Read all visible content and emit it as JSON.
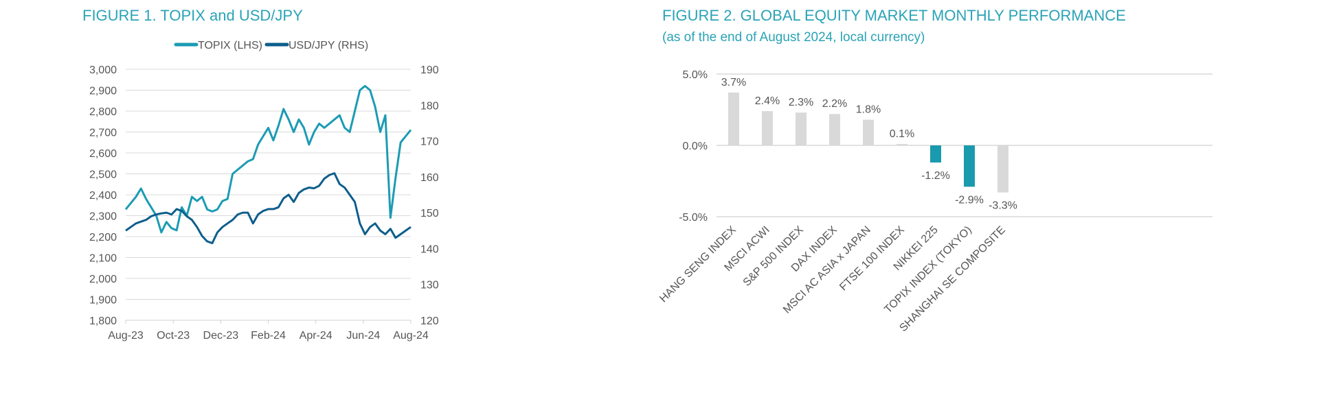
{
  "chart_data": [
    {
      "type": "line",
      "title": "FIGURE 1. TOPIX and USD/JPY",
      "x_tick_labels": [
        "Aug-23",
        "Oct-23",
        "Dec-23",
        "Feb-24",
        "Apr-24",
        "Jun-24",
        "Aug-24"
      ],
      "x_unit": "weeks since Aug-23",
      "y_left": {
        "label": "",
        "ylim": [
          1800,
          3000
        ],
        "ticks": [
          "3,000",
          "2,900",
          "2,800",
          "2,700",
          "2,600",
          "2,500",
          "2,400",
          "2,300",
          "2,200",
          "2,100",
          "2,000",
          "1,900",
          "1,800"
        ]
      },
      "y_right": {
        "label": "",
        "ylim": [
          120,
          190
        ],
        "ticks": [
          "190",
          "180",
          "170",
          "160",
          "150",
          "140",
          "130",
          "120"
        ]
      },
      "grid": true,
      "legend": "top-center",
      "series": [
        {
          "name": "TOPIX (LHS)",
          "axis": "left",
          "color": "#1b9bb3",
          "values": [
            2330,
            2360,
            2390,
            2430,
            2380,
            2340,
            2300,
            2220,
            2270,
            2240,
            2230,
            2340,
            2300,
            2390,
            2370,
            2390,
            2330,
            2320,
            2330,
            2370,
            2380,
            2500,
            2520,
            2540,
            2560,
            2570,
            2640,
            2680,
            2720,
            2660,
            2730,
            2810,
            2760,
            2700,
            2760,
            2720,
            2640,
            2700,
            2740,
            2720,
            2740,
            2760,
            2780,
            2720,
            2700,
            2800,
            2900,
            2920,
            2900,
            2820,
            2700,
            2780,
            2290,
            2480,
            2650,
            2680,
            2710
          ]
        },
        {
          "name": "USD/JPY (RHS)",
          "axis": "right",
          "color": "#0d5e8c",
          "values": [
            145,
            146,
            147,
            147.5,
            148,
            149,
            149.5,
            149.8,
            150,
            149.5,
            151,
            150.5,
            149,
            148,
            146,
            143.5,
            142,
            141.5,
            144.5,
            146,
            147,
            148,
            149.5,
            150,
            150,
            147,
            149.5,
            150.5,
            151,
            151,
            151.5,
            154,
            155,
            153,
            155.5,
            156.5,
            157,
            156.8,
            157.5,
            159.5,
            160.5,
            161,
            158,
            157,
            155,
            153,
            147,
            144,
            146,
            147,
            145,
            144,
            145.5,
            143,
            144,
            145,
            146
          ]
        }
      ]
    },
    {
      "type": "bar",
      "title": "FIGURE 2. GLOBAL EQUITY MARKET MONTHLY PERFORMANCE",
      "subtitle": "(as of the end of August 2024, local currency)",
      "categories": [
        "HANG SENG INDEX",
        "MSCI ACWI",
        "S&P 500 INDEX",
        "DAX INDEX",
        "MSCI AC ASIA x JAPAN",
        "FTSE 100 INDEX",
        "NIKKEI 225",
        "TOPIX INDEX (TOKYO)",
        "SHANGHAI SE COMPOSITE"
      ],
      "values": [
        3.7,
        2.4,
        2.3,
        2.2,
        1.8,
        0.1,
        -1.2,
        -2.9,
        -3.3
      ],
      "data_labels": [
        "3.7%",
        "2.4%",
        "2.3%",
        "2.2%",
        "1.8%",
        "0.1%",
        "-1.2%",
        "-2.9%",
        "-3.3%"
      ],
      "highlight": [
        false,
        false,
        false,
        false,
        false,
        false,
        true,
        true,
        false
      ],
      "colors": {
        "default": "#d9d9d9",
        "highlight": "#1a9aae"
      },
      "ylim": [
        -5,
        5
      ],
      "y_ticks": [
        "5.0%",
        "0.0%",
        "-5.0%"
      ],
      "xlabel": "",
      "ylabel": "",
      "grid": true
    }
  ]
}
